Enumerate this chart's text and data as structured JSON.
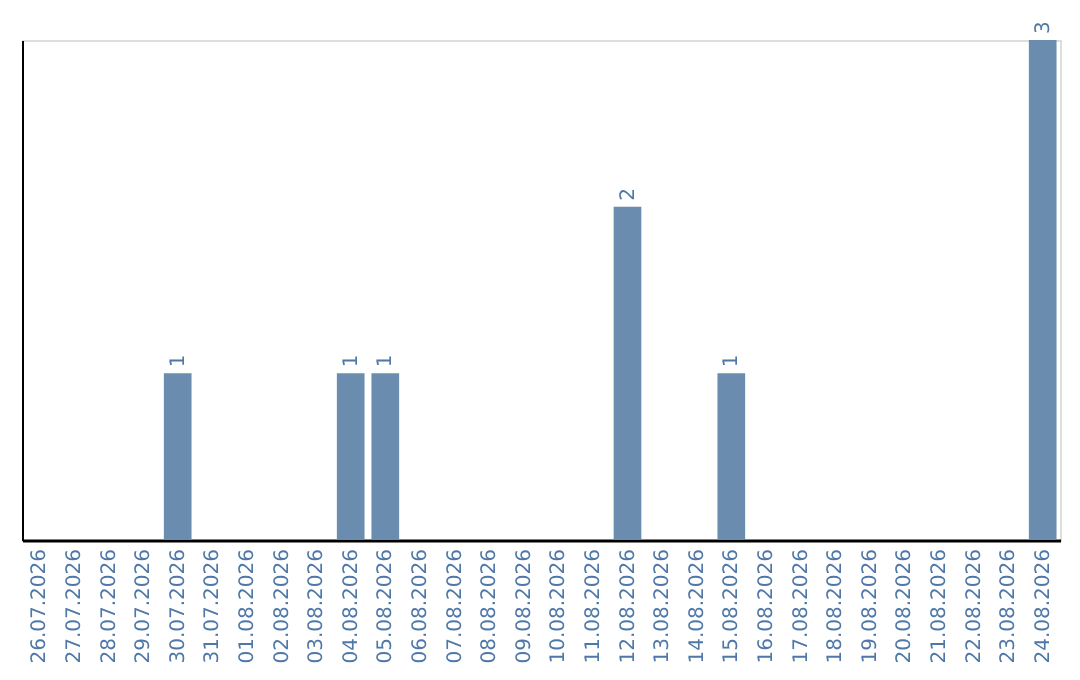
{
  "chart_data": {
    "type": "bar",
    "categories": [
      "26.07.2026",
      "27.07.2026",
      "28.07.2026",
      "29.07.2026",
      "30.07.2026",
      "31.07.2026",
      "01.08.2026",
      "02.08.2026",
      "03.08.2026",
      "04.08.2026",
      "05.08.2026",
      "06.08.2026",
      "07.08.2026",
      "08.08.2026",
      "09.08.2026",
      "10.08.2026",
      "11.08.2026",
      "12.08.2026",
      "13.08.2026",
      "14.08.2026",
      "15.08.2026",
      "16.08.2026",
      "17.08.2026",
      "18.08.2026",
      "19.08.2026",
      "20.08.2026",
      "21.08.2026",
      "22.08.2026",
      "23.08.2026",
      "24.08.2026"
    ],
    "values": [
      0,
      0,
      0,
      0,
      1,
      0,
      0,
      0,
      0,
      1,
      1,
      0,
      0,
      0,
      0,
      0,
      0,
      2,
      0,
      0,
      1,
      0,
      0,
      0,
      0,
      0,
      0,
      0,
      0,
      3
    ],
    "value_labels": [
      null,
      null,
      null,
      null,
      "1",
      null,
      null,
      null,
      null,
      "1",
      "1",
      null,
      null,
      null,
      null,
      null,
      null,
      "2",
      null,
      null,
      "1",
      null,
      null,
      null,
      null,
      null,
      null,
      null,
      null,
      "3"
    ],
    "color": "#6a8caf",
    "grid": false,
    "tick_labels": "x"
  }
}
